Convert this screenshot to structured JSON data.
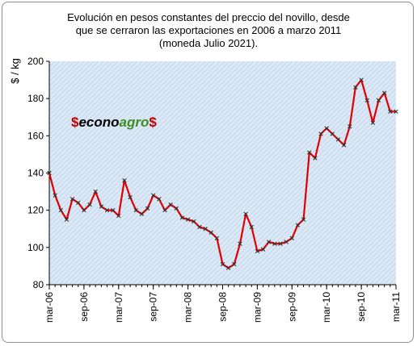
{
  "title_lines": [
    "Evolución en pesos constantes del preccio del novillo, desde",
    "que se cerraron las  exportaciones en 2006 a marzo  2011",
    "(moneda Julio 2021)."
  ],
  "logo": {
    "prefix": "$",
    "econo": "econo",
    "agro": "agro",
    "suffix": "$"
  },
  "colors": {
    "line": "#e00000",
    "marker": "#303030",
    "plot_bg": "#dbe8f5",
    "logo_red": "#c00000",
    "logo_black": "#000000",
    "logo_green": "#3d8f1f"
  },
  "chart_data": {
    "type": "line",
    "title": "Evolución en pesos constantes del preccio del novillo, desde que se cerraron las exportaciones en 2006 a marzo 2011 (moneda Julio 2021).",
    "ylabel": "$ / kg",
    "xlabel": "",
    "ylim": [
      80,
      200
    ],
    "yticks": [
      80,
      100,
      120,
      140,
      160,
      180,
      200
    ],
    "xlim": [
      "2006-03",
      "2011-03"
    ],
    "x_tick_labels": [
      "mar-06",
      "sep-06",
      "mar-07",
      "sep-07",
      "mar-08",
      "sep-08",
      "mar-09",
      "sep-09",
      "mar-10",
      "sep-10",
      "mar-11"
    ],
    "grid": false,
    "legend": "none",
    "series": [
      {
        "x": [
          "2006-03",
          "2006-04",
          "2006-05",
          "2006-06",
          "2006-07",
          "2006-08",
          "2006-09",
          "2006-10",
          "2006-11",
          "2006-12",
          "2007-01",
          "2007-02",
          "2007-03",
          "2007-04",
          "2007-05",
          "2007-06",
          "2007-07",
          "2007-08",
          "2007-09",
          "2007-10",
          "2007-11",
          "2007-12",
          "2008-01",
          "2008-02",
          "2008-03",
          "2008-04",
          "2008-05",
          "2008-06",
          "2008-07",
          "2008-08",
          "2008-09",
          "2008-10",
          "2008-11",
          "2008-12",
          "2009-01",
          "2009-02",
          "2009-03",
          "2009-04",
          "2009-05",
          "2009-06",
          "2009-07",
          "2009-08",
          "2009-09",
          "2009-10",
          "2009-11",
          "2009-12",
          "2010-01",
          "2010-02",
          "2010-03",
          "2010-04",
          "2010-05",
          "2010-06",
          "2010-07",
          "2010-08",
          "2010-09",
          "2010-10",
          "2010-11",
          "2010-12",
          "2011-01",
          "2011-02",
          "2011-03"
        ],
        "y": [
          140,
          128,
          120,
          115,
          126,
          124,
          120,
          123,
          130,
          122,
          120,
          120,
          117,
          136,
          127,
          120,
          118,
          121,
          128,
          126,
          120,
          123,
          121,
          116,
          115,
          114,
          111,
          110,
          108,
          105,
          91,
          89,
          91,
          102,
          118,
          111,
          98,
          99,
          103,
          102,
          102,
          103,
          105,
          112,
          115,
          151,
          148,
          161,
          164,
          161,
          158,
          155,
          165,
          186,
          190,
          179,
          167,
          179,
          183,
          173,
          173
        ]
      }
    ]
  }
}
